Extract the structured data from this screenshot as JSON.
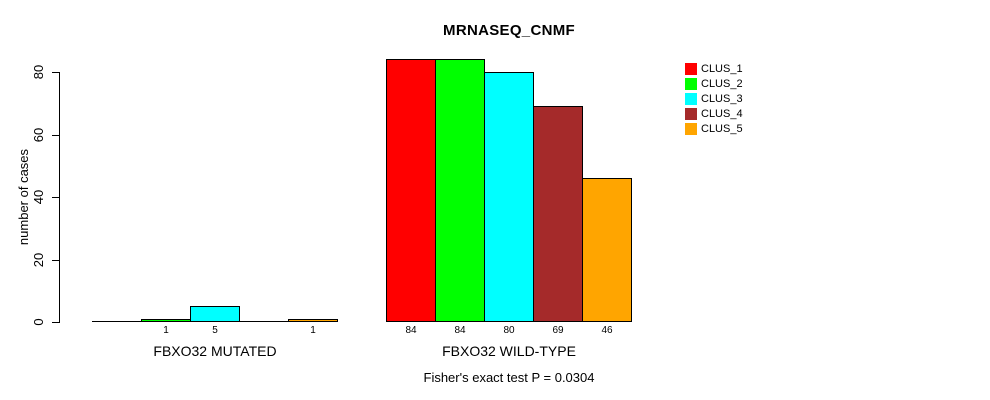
{
  "page": {
    "background": "#FFFFFF",
    "text_color": "#000000",
    "axis_color": "#000000"
  },
  "chart_data": {
    "type": "bar",
    "title": "MRNASEQ_CNMF",
    "ylabel": "number of cases",
    "xlabel": "",
    "categories": [
      "FBXO32 MUTATED",
      "FBXO32 WILD-TYPE"
    ],
    "series": [
      {
        "name": "CLUS_1",
        "color": "#FF0000",
        "values": [
          0,
          84
        ]
      },
      {
        "name": "CLUS_2",
        "color": "#00FF00",
        "values": [
          1,
          84
        ]
      },
      {
        "name": "CLUS_3",
        "color": "#00FFFF",
        "values": [
          5,
          80
        ]
      },
      {
        "name": "CLUS_4",
        "color": "#A52A2A",
        "values": [
          0,
          69
        ]
      },
      {
        "name": "CLUS_5",
        "color": "#FFA500",
        "values": [
          1,
          46
        ]
      }
    ],
    "yticks": [
      0,
      20,
      40,
      60,
      80
    ],
    "ylim": [
      0,
      84
    ],
    "grid": false,
    "legend_position": "right",
    "bar_value_labels": {
      "show": true,
      "hide_zero": true
    },
    "annotation": "Fisher's exact test P = 0.0304"
  }
}
